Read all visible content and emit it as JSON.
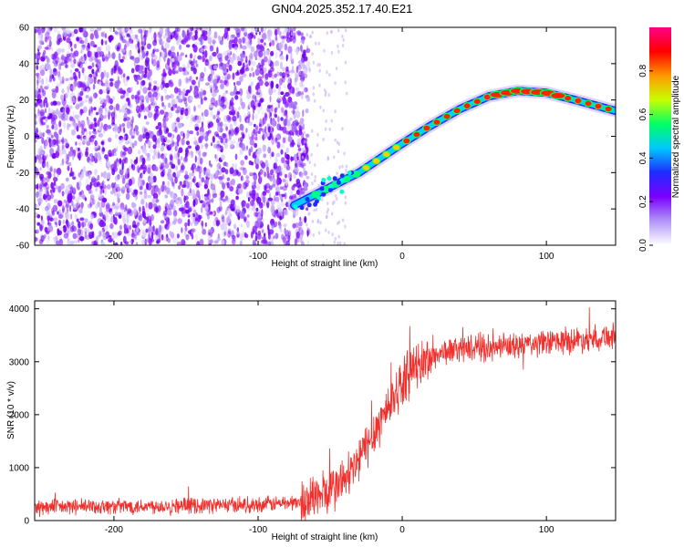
{
  "title": "GN04.2025.352.17.40.E21",
  "chart_data": [
    {
      "type": "heatmap",
      "name": "spectrogram",
      "xlabel": "Height of straight line (km)",
      "ylabel": "Frequency (Hz)",
      "xlim": [
        -255,
        148
      ],
      "ylim": [
        -60,
        60
      ],
      "xticks": [
        -200,
        -100,
        0,
        100
      ],
      "yticks": [
        -60,
        -40,
        -20,
        0,
        20,
        40,
        60
      ],
      "xtick_labels": [
        "-200",
        "-100",
        "0",
        "100"
      ],
      "ytick_labels": [
        "-60",
        "-40",
        "-20",
        "0",
        "20",
        "40",
        "60"
      ],
      "noise_region_x": [
        -255,
        -70
      ],
      "ridge": {
        "description_points_x": [
          -75,
          -60,
          -45,
          -30,
          -15,
          0,
          20,
          40,
          60,
          80,
          100,
          120,
          148
        ],
        "description_points_y": [
          -38,
          -32,
          -26,
          -20,
          -12,
          -4,
          6,
          15,
          22,
          25,
          24,
          20,
          14
        ]
      },
      "colorbar": {
        "label": "Normalized spectral amplitude",
        "range": [
          0,
          1
        ],
        "ticks": [
          0.0,
          0.2,
          0.4,
          0.6,
          0.8
        ],
        "tick_labels": [
          "0.0",
          "0.2",
          "0.4",
          "0.6",
          "0.8"
        ],
        "colors": [
          "#ffffff",
          "#b296f8",
          "#7a00ff",
          "#1f2bff",
          "#00c8ff",
          "#00ff66",
          "#c8ff00",
          "#ff9900",
          "#ff0000",
          "#ff0088"
        ]
      }
    },
    {
      "type": "line",
      "name": "snr",
      "xlabel": "Height of straight line (km)",
      "ylabel": "SNR (10 * v/v)",
      "xlim": [
        -255,
        148
      ],
      "ylim": [
        0,
        4150
      ],
      "xticks": [
        -200,
        -100,
        0,
        100
      ],
      "yticks": [
        0,
        1000,
        2000,
        3000,
        4000
      ],
      "xtick_labels": [
        "-200",
        "-100",
        "0",
        "100"
      ],
      "ytick_labels": [
        "0",
        "1000",
        "2000",
        "3000",
        "4000"
      ],
      "color": "#f0302c",
      "trend_x": [
        -255,
        -100,
        -70,
        -50,
        -35,
        -25,
        -15,
        -5,
        5,
        15,
        25,
        40,
        60,
        100,
        148
      ],
      "trend_y": [
        250,
        300,
        350,
        550,
        900,
        1400,
        1900,
        2400,
        2800,
        3000,
        3150,
        3250,
        3250,
        3350,
        3500
      ]
    }
  ]
}
